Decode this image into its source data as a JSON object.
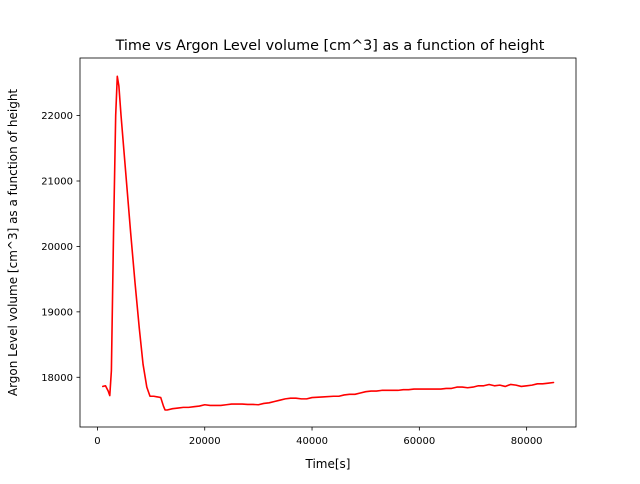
{
  "chart_data": {
    "type": "line",
    "title": "Time vs  Argon Level volume [cm^3] as a function of height",
    "xlabel": "Time[s]",
    "ylabel": "Argon Level volume [cm^3] as a function of height",
    "xlim": [
      -3250,
      89200
    ],
    "ylim": [
      17240,
      22880
    ],
    "x_ticks": [
      0,
      20000,
      40000,
      60000,
      80000
    ],
    "x_tick_labels": [
      "0",
      "20000",
      "40000",
      "60000",
      "80000"
    ],
    "y_ticks": [
      18000,
      19000,
      20000,
      21000,
      22000
    ],
    "y_tick_labels": [
      "18000",
      "19000",
      "20000",
      "21000",
      "22000"
    ],
    "grid": false,
    "series": [
      {
        "color": "#ff0000",
        "x": [
          1000,
          1500,
          2000,
          2300,
          2600,
          3000,
          3400,
          3700,
          4000,
          4400,
          5000,
          5600,
          6200,
          7000,
          7800,
          8500,
          9200,
          9800,
          10500,
          11200,
          11800,
          12300,
          12600,
          13000,
          14000,
          15000,
          16000,
          17000,
          18000,
          19000,
          20000,
          21000,
          22000,
          23000,
          24000,
          25000,
          26000,
          27000,
          28000,
          29000,
          30000,
          31000,
          32000,
          33000,
          34000,
          35000,
          36000,
          37000,
          38000,
          39000,
          40000,
          42000,
          44000,
          45000,
          46000,
          47000,
          48000,
          49000,
          50000,
          51000,
          52000,
          53000,
          54000,
          55000,
          56000,
          57000,
          58000,
          59000,
          60000,
          62000,
          64000,
          65000,
          66000,
          67000,
          68000,
          69000,
          70000,
          71000,
          72000,
          73000,
          74000,
          75000,
          76000,
          77000,
          78000,
          79000,
          80000,
          81000,
          82000,
          83000,
          84000,
          85000
        ],
        "y": [
          17860,
          17870,
          17790,
          17720,
          18100,
          20200,
          22000,
          22600,
          22450,
          22000,
          21400,
          20800,
          20200,
          19450,
          18750,
          18200,
          17850,
          17710,
          17710,
          17700,
          17690,
          17560,
          17500,
          17500,
          17520,
          17530,
          17540,
          17540,
          17550,
          17560,
          17580,
          17570,
          17570,
          17570,
          17580,
          17590,
          17590,
          17590,
          17585,
          17585,
          17580,
          17600,
          17610,
          17630,
          17650,
          17670,
          17680,
          17680,
          17670,
          17670,
          17690,
          17700,
          17710,
          17710,
          17730,
          17740,
          17740,
          17760,
          17780,
          17790,
          17790,
          17800,
          17800,
          17800,
          17800,
          17810,
          17810,
          17820,
          17820,
          17820,
          17820,
          17830,
          17830,
          17850,
          17850,
          17840,
          17850,
          17870,
          17870,
          17890,
          17870,
          17880,
          17860,
          17890,
          17880,
          17860,
          17870,
          17880,
          17900,
          17900,
          17910,
          17920
        ]
      }
    ]
  }
}
